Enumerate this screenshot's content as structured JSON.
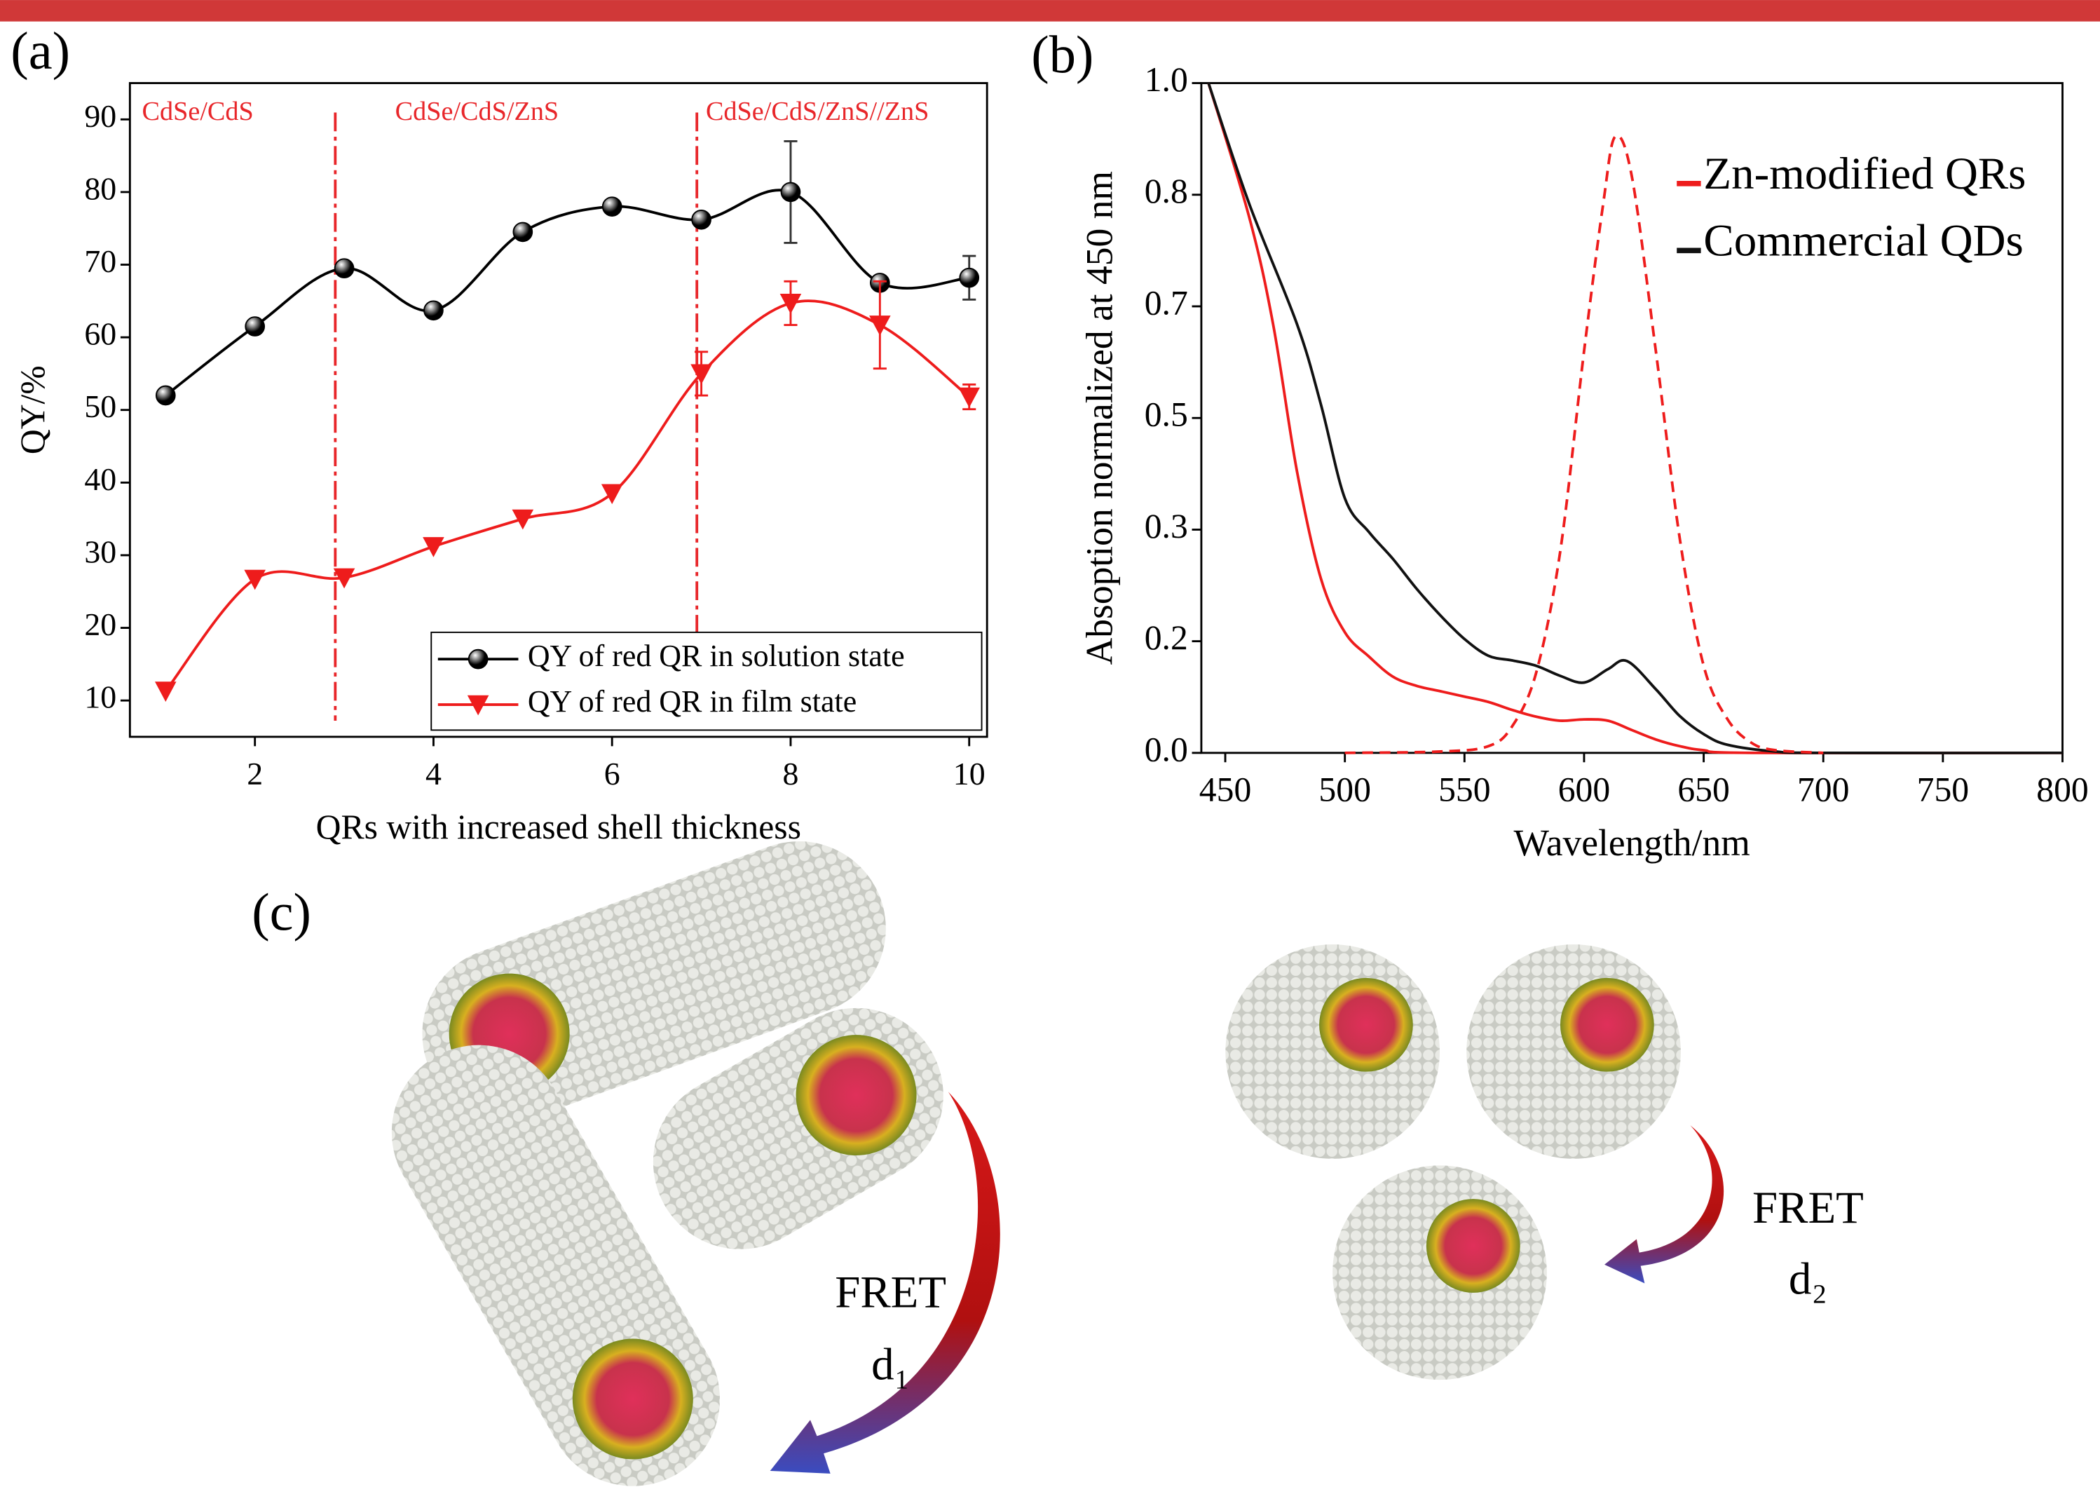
{
  "chart_data": [
    {
      "type": "line",
      "panel": "(a)",
      "xlabel": "QRs with increased shell thickness",
      "ylabel": "QY/%",
      "x": [
        1,
        2,
        3,
        4,
        5,
        6,
        7,
        8,
        9,
        10
      ],
      "xlim": [
        0.6,
        10.2
      ],
      "xticks": [
        2,
        4,
        6,
        8,
        10
      ],
      "ylim": [
        5,
        95
      ],
      "yticks": [
        10,
        20,
        30,
        40,
        50,
        60,
        70,
        80,
        90
      ],
      "vlines": [
        2.9,
        6.95
      ],
      "vline_color": "#e8262a",
      "annotations": [
        "CdSe/CdS",
        "CdSe/CdS/ZnS",
        "CdSe/CdS/ZnS//ZnS"
      ],
      "legend": "lower right",
      "series": [
        {
          "name": "QY of red QR in solution state",
          "color": "#000000",
          "marker": "circle",
          "values": [
            52,
            61.5,
            69.5,
            63.7,
            74.5,
            78,
            76.2,
            80,
            67.5,
            68.2
          ],
          "errors": [
            null,
            null,
            null,
            null,
            null,
            null,
            null,
            7,
            null,
            3
          ]
        },
        {
          "name": "QY of red QR in film state",
          "color": "#ee1c1c",
          "marker": "triangle-down",
          "values": [
            11.3,
            26.7,
            26.9,
            31.2,
            35,
            38.5,
            55,
            64.7,
            61.7,
            51.8
          ],
          "errors": [
            null,
            null,
            null,
            null,
            null,
            null,
            3,
            3,
            6,
            1.7
          ]
        }
      ]
    },
    {
      "type": "line",
      "panel": "(b)",
      "xlabel": "Wavelength/nm",
      "ylabel": "Absoption normalized at 450 nm",
      "xlim": [
        440,
        800
      ],
      "xticks": [
        450,
        500,
        550,
        600,
        650,
        700,
        750,
        800
      ],
      "ylim": [
        0,
        1
      ],
      "yticks": [
        {
          "value": 0,
          "label": "0.0"
        },
        {
          "value": 0.1667,
          "label": "0.2"
        },
        {
          "value": 0.3333,
          "label": "0.3"
        },
        0.5,
        {
          "value": 0.6667,
          "label": "0.7"
        },
        {
          "value": 0.8333,
          "label": "0.8"
        },
        {
          "value": 1,
          "label": "1.0"
        }
      ],
      "legend": "upper right",
      "series": [
        {
          "name": "Zn-modified QRs",
          "color": "#ee1c1c",
          "x": [
            443,
            460,
            470,
            480,
            490,
            500,
            510,
            520,
            530,
            540,
            550,
            560,
            570,
            580,
            590,
            600,
            610,
            620,
            630,
            640,
            650,
            670,
            800
          ],
          "values": [
            1.0,
            0.8,
            0.64,
            0.42,
            0.26,
            0.18,
            0.144,
            0.114,
            0.1,
            0.092,
            0.084,
            0.076,
            0.064,
            0.054,
            0.048,
            0.05,
            0.048,
            0.034,
            0.02,
            0.01,
            0.004,
            0,
            0
          ]
        },
        {
          "name": "Commercial QDs",
          "color": "#111111",
          "x": [
            443,
            460,
            480,
            490,
            500,
            510,
            520,
            530,
            540,
            550,
            560,
            570,
            580,
            590,
            600,
            610,
            618,
            630,
            640,
            650,
            660,
            680,
            700,
            800
          ],
          "values": [
            1.0,
            0.82,
            0.64,
            0.52,
            0.38,
            0.33,
            0.29,
            0.245,
            0.205,
            0.17,
            0.145,
            0.138,
            0.13,
            0.115,
            0.105,
            0.125,
            0.137,
            0.095,
            0.055,
            0.028,
            0.012,
            0.002,
            0,
            0
          ]
        },
        {
          "color": "#ee1c1c",
          "dash": true,
          "x": [
            500,
            540,
            560,
            570,
            580,
            590,
            600,
            608,
            613,
            620,
            630,
            640,
            650,
            660,
            670,
            680,
            700
          ],
          "values": [
            0,
            0.002,
            0.01,
            0.04,
            0.12,
            0.3,
            0.6,
            0.82,
            0.92,
            0.86,
            0.6,
            0.32,
            0.13,
            0.05,
            0.015,
            0.004,
            0
          ]
        }
      ]
    }
  ],
  "illustration": {
    "panel": "(c)",
    "left_label": "FRET",
    "left_distance": "d₁",
    "right_label": "FRET",
    "right_distance": "d₂"
  }
}
